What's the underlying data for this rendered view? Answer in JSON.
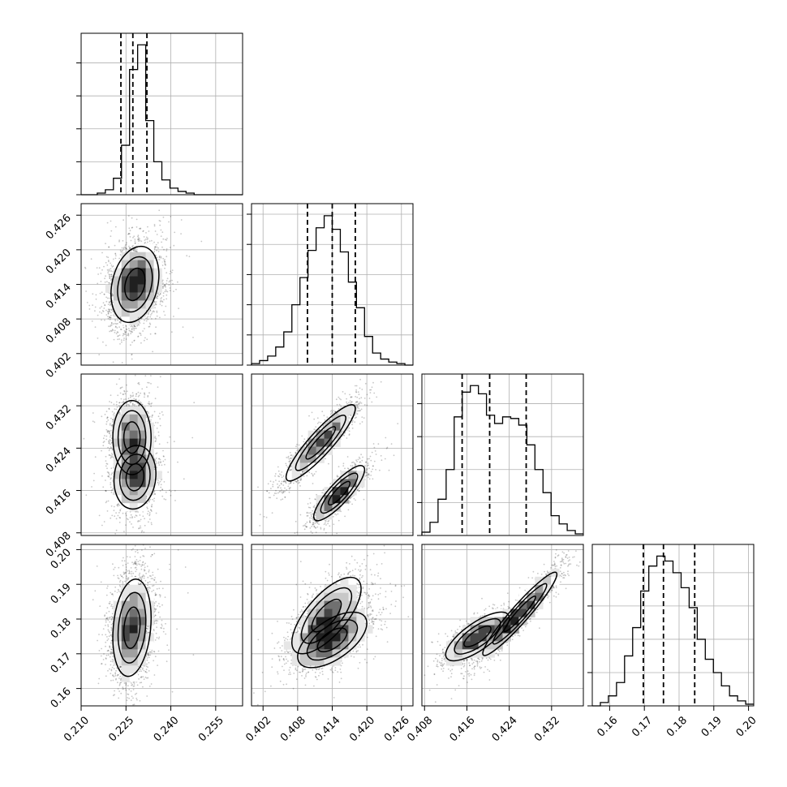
{
  "figure": {
    "background": "#ffffff"
  },
  "chart_data": {
    "type": "corner",
    "grid": true,
    "style": {
      "hist_color": "#000000",
      "quantile_color": "#000000",
      "scatter_color": "#000000",
      "grid_color": "#b0b0b0",
      "density_ramp": [
        "#ffffff",
        "#e6e6e6",
        "#c8c8c8",
        "#a0a0a0",
        "#707070",
        "#454545",
        "#202020"
      ]
    },
    "parameters": [
      {
        "index": 0,
        "range": [
          0.21,
          0.264
        ],
        "ticks": [
          0.21,
          0.225,
          0.24,
          0.255
        ],
        "tick_labels": [
          "0.210",
          "0.225",
          "0.240",
          "0.255"
        ]
      },
      {
        "index": 1,
        "range": [
          0.4,
          0.428
        ],
        "ticks": [
          0.402,
          0.408,
          0.414,
          0.42,
          0.426
        ],
        "tick_labels": [
          "0.402",
          "0.408",
          "0.414",
          "0.420",
          "0.426"
        ]
      },
      {
        "index": 2,
        "range": [
          0.4075,
          0.438
        ],
        "ticks": [
          0.408,
          0.416,
          0.424,
          0.432
        ],
        "tick_labels": [
          "0.408",
          "0.416",
          "0.424",
          "0.432"
        ]
      },
      {
        "index": 3,
        "range": [
          0.155,
          0.2015
        ],
        "ticks": [
          0.16,
          0.17,
          0.18,
          0.19,
          0.2
        ],
        "tick_labels": [
          "0.16",
          "0.17",
          "0.18",
          "0.19",
          "0.20"
        ]
      }
    ],
    "histograms": [
      {
        "param": 0,
        "bin_edges": [
          0.21,
          0.2127,
          0.2154,
          0.2181,
          0.2208,
          0.2235,
          0.2262,
          0.2289,
          0.2316,
          0.2343,
          0.237,
          0.2397,
          0.2424,
          0.2451,
          0.2478,
          0.2505,
          0.2532,
          0.2559,
          0.2586,
          0.2613,
          0.264
        ],
        "counts": [
          0,
          0,
          1,
          3,
          10,
          30,
          76,
          91,
          45,
          20,
          9,
          4,
          2,
          1,
          0,
          0,
          0,
          0,
          0,
          0
        ],
        "quantiles": [
          0.2233,
          0.2273,
          0.232
        ],
        "y_max": 98
      },
      {
        "param": 1,
        "bin_edges": [
          0.4,
          0.4014,
          0.4028,
          0.4042,
          0.4056,
          0.407,
          0.4084,
          0.4098,
          0.4112,
          0.4126,
          0.414,
          0.4154,
          0.4168,
          0.4182,
          0.4196,
          0.421,
          0.4224,
          0.4238,
          0.4252,
          0.4266,
          0.428
        ],
        "counts": [
          1,
          3,
          6,
          12,
          22,
          40,
          58,
          76,
          91,
          99,
          90,
          75,
          55,
          38,
          19,
          8,
          4,
          2,
          1,
          0
        ],
        "quantiles": [
          0.4097,
          0.414,
          0.418
        ],
        "y_max": 107
      },
      {
        "param": 2,
        "bin_edges": [
          0.4075,
          0.40903,
          0.41055,
          0.41208,
          0.4136,
          0.41513,
          0.41665,
          0.41818,
          0.4197,
          0.42123,
          0.42275,
          0.42428,
          0.4258,
          0.42733,
          0.42885,
          0.43038,
          0.4319,
          0.43343,
          0.43495,
          0.43648,
          0.438
        ],
        "counts": [
          2,
          8,
          22,
          40,
          72,
          87,
          91,
          86,
          73,
          68,
          72,
          71,
          67,
          55,
          40,
          26,
          12,
          7,
          3,
          1
        ],
        "quantiles": [
          0.4151,
          0.4203,
          0.4272
        ],
        "y_max": 98
      },
      {
        "param": 3,
        "bin_edges": [
          0.155,
          0.15733,
          0.15965,
          0.16198,
          0.1643,
          0.16663,
          0.16895,
          0.17128,
          0.1736,
          0.17593,
          0.17825,
          0.18058,
          0.1829,
          0.18523,
          0.18755,
          0.18988,
          0.1922,
          0.19453,
          0.19685,
          0.19918,
          0.2015
        ],
        "counts": [
          0,
          2,
          6,
          14,
          30,
          47,
          69,
          84,
          90,
          87,
          80,
          71,
          59,
          40,
          28,
          20,
          12,
          6,
          3,
          1
        ],
        "quantiles": [
          0.1697,
          0.1755,
          0.1845
        ],
        "y_max": 97
      }
    ],
    "joint_distributions": [
      {
        "x": 0,
        "y": 1,
        "modes": [
          {
            "center": [
              0.228,
              0.414
            ],
            "sd": [
              0.004,
              0.0033
            ],
            "corr": 0.25,
            "weight": 1.0
          }
        ]
      },
      {
        "x": 0,
        "y": 2,
        "modes": [
          {
            "center": [
              0.227,
              0.426
            ],
            "sd": [
              0.0032,
              0.0035
            ],
            "corr": 0.0,
            "weight": 0.5
          },
          {
            "center": [
              0.228,
              0.4185
            ],
            "sd": [
              0.0035,
              0.003
            ],
            "corr": 0.1,
            "weight": 0.5
          }
        ]
      },
      {
        "x": 1,
        "y": 2,
        "modes": [
          {
            "center": [
              0.412,
              0.425
            ],
            "sd": [
              0.003,
              0.0036
            ],
            "corr": 0.9,
            "weight": 0.55
          },
          {
            "center": [
              0.4152,
              0.4155
            ],
            "sd": [
              0.0022,
              0.0026
            ],
            "corr": 0.85,
            "weight": 0.45
          }
        ]
      },
      {
        "x": 0,
        "y": 3,
        "modes": [
          {
            "center": [
              0.227,
              0.1775
            ],
            "sd": [
              0.0032,
              0.007
            ],
            "corr": 0.2,
            "weight": 1.0
          }
        ]
      },
      {
        "x": 1,
        "y": 3,
        "modes": [
          {
            "center": [
              0.413,
              0.181
            ],
            "sd": [
              0.003,
              0.0055
            ],
            "corr": 0.7,
            "weight": 0.5
          },
          {
            "center": [
              0.414,
              0.174
            ],
            "sd": [
              0.003,
              0.004
            ],
            "corr": 0.6,
            "weight": 0.5
          }
        ]
      },
      {
        "x": 2,
        "y": 3,
        "modes": [
          {
            "center": [
              0.418,
              0.175
            ],
            "sd": [
              0.003,
              0.0035
            ],
            "corr": 0.75,
            "weight": 0.5
          },
          {
            "center": [
              0.426,
              0.1815
            ],
            "sd": [
              0.0035,
              0.006
            ],
            "corr": 0.95,
            "weight": 0.5
          }
        ]
      }
    ]
  }
}
